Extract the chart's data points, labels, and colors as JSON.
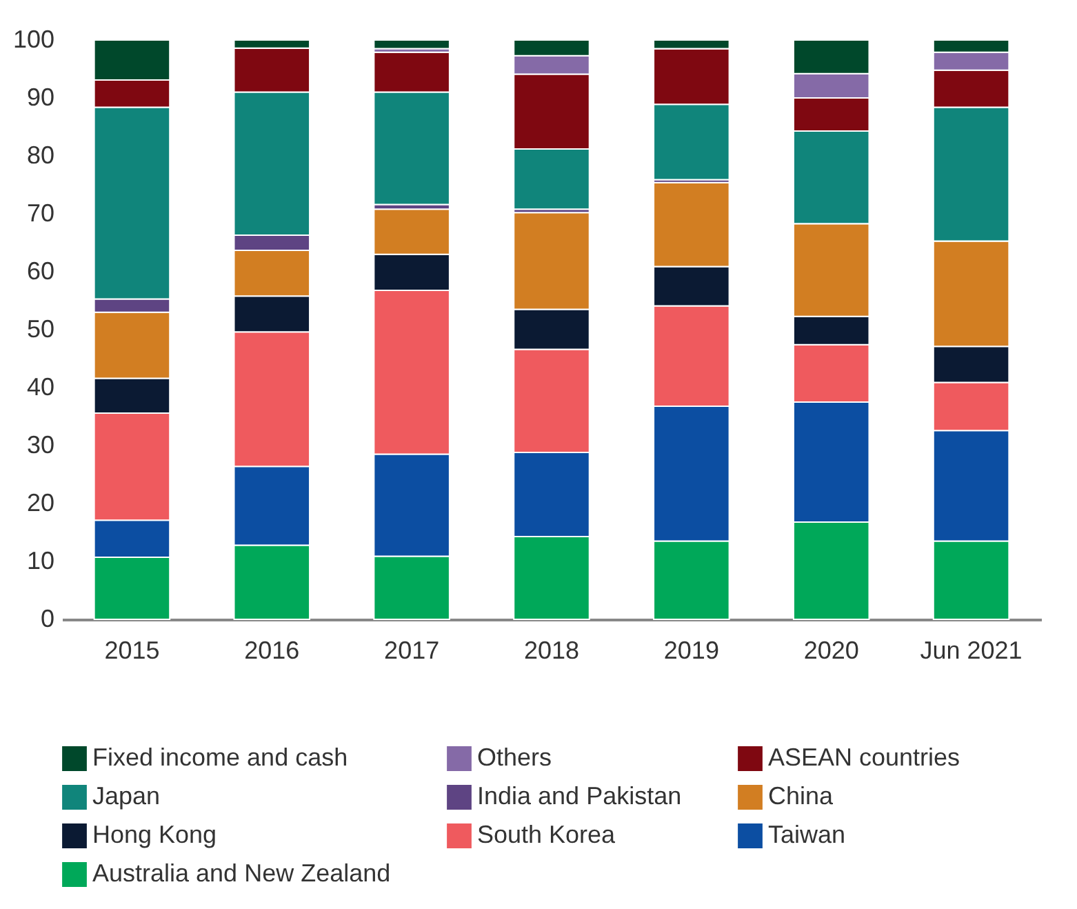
{
  "chart_data": {
    "type": "bar",
    "stacked": true,
    "categories": [
      "2015",
      "2016",
      "2017",
      "2018",
      "2019",
      "2020",
      "Jun 2021"
    ],
    "ylim": [
      0,
      100
    ],
    "yticks": [
      0,
      10,
      20,
      30,
      40,
      50,
      60,
      70,
      80,
      90,
      100
    ],
    "legend": "bottom",
    "grid": false,
    "series": [
      {
        "name": "Australia and New Zealand",
        "color": "#00a859",
        "values": [
          10.7,
          12.8,
          10.9,
          14.3,
          13.5,
          16.8,
          13.5
        ]
      },
      {
        "name": "Taiwan",
        "color": "#0c4ea2",
        "values": [
          6.4,
          13.6,
          17.6,
          14.5,
          23.3,
          20.7,
          19.1
        ]
      },
      {
        "name": "South Korea",
        "color": "#ef5a5e",
        "values": [
          18.5,
          23.2,
          28.3,
          17.8,
          17.3,
          9.9,
          8.3
        ]
      },
      {
        "name": "Hong Kong",
        "color": "#0b1a33",
        "values": [
          6.0,
          6.2,
          6.2,
          6.9,
          6.8,
          4.9,
          6.2
        ]
      },
      {
        "name": "China",
        "color": "#d27e22",
        "values": [
          11.4,
          7.9,
          7.8,
          16.7,
          14.5,
          16.0,
          18.2
        ]
      },
      {
        "name": "India and Pakistan",
        "color": "#5e4483",
        "values": [
          2.3,
          2.6,
          0.8,
          0.6,
          0.5,
          0,
          0
        ]
      },
      {
        "name": "Japan",
        "color": "#10857b",
        "values": [
          33.1,
          24.7,
          19.4,
          10.4,
          13.0,
          16.0,
          23.1
        ]
      },
      {
        "name": "ASEAN countries",
        "color": "#7f0811",
        "values": [
          4.7,
          7.6,
          6.9,
          12.9,
          9.6,
          5.7,
          6.4
        ]
      },
      {
        "name": "Others",
        "color": "#856aa7",
        "values": [
          0,
          0,
          0.6,
          3.2,
          0,
          4.2,
          3.1
        ]
      },
      {
        "name": "Fixed income and cash",
        "color": "#00482b",
        "values": [
          6.9,
          1.4,
          1.5,
          2.7,
          1.5,
          5.8,
          2.1
        ]
      }
    ]
  }
}
